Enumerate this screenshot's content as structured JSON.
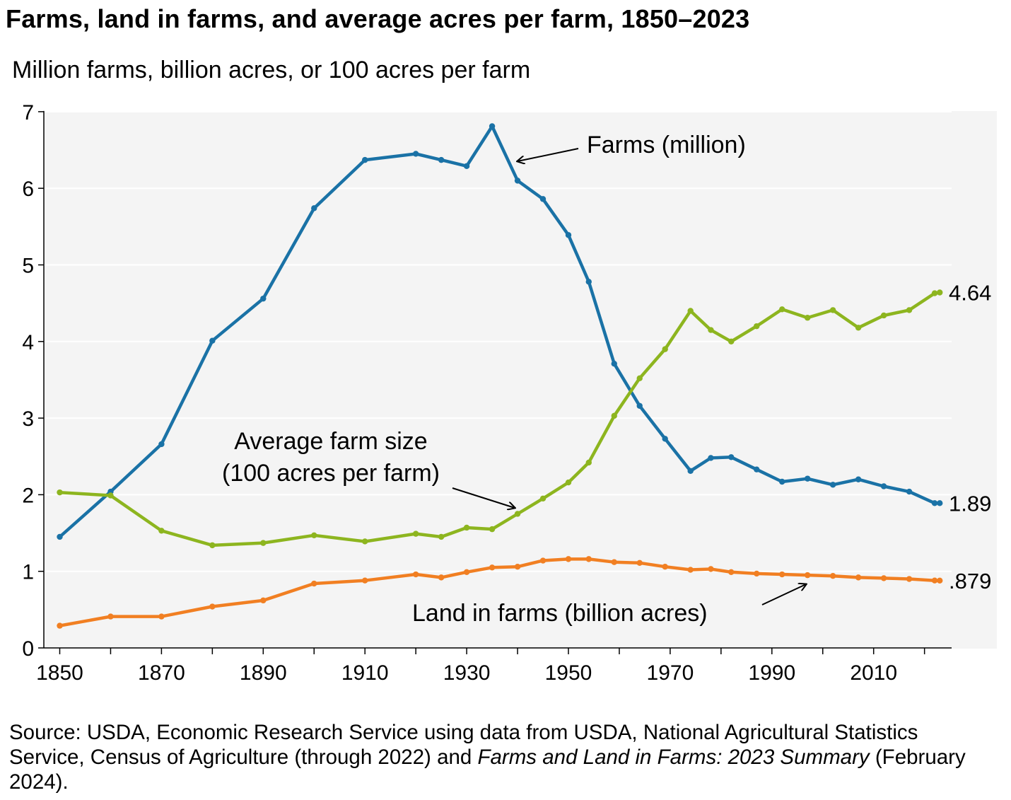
{
  "title": "Farms, land in farms, and average acres per farm, 1850–2023",
  "subtitle": "Million farms, billion acres, or 100 acres per farm",
  "source": {
    "prefix": "Source: USDA, Economic Research Service using data from USDA, National Agricultural Statistics Service, Census of Agriculture (through 2022) and ",
    "italic1": "Farms and Land in Farms: 2023 Summary",
    "suffix": " (February 2024)."
  },
  "colors": {
    "farms": "#1a72a6",
    "size": "#8db51f",
    "land": "#f17f22",
    "plot_bg": "#f4f4f4",
    "grid": "#ffffff"
  },
  "chart_data": {
    "type": "line",
    "title": "Farms, land in farms, and average acres per farm, 1850–2023",
    "ylabel": "Million farms, billion acres, or 100 acres per farm",
    "xlabel": "",
    "xlim": [
      1847,
      2026
    ],
    "ylim": [
      0,
      7
    ],
    "x_ticks": [
      "1850",
      "1870",
      "1890",
      "1910",
      "1930",
      "1950",
      "1970",
      "1990",
      "2010"
    ],
    "y_ticks": [
      "0",
      "1",
      "2",
      "3",
      "4",
      "5",
      "6",
      "7"
    ],
    "grid": true,
    "series": [
      {
        "key": "farms",
        "name": "Farms (million)",
        "end_label": "1.89",
        "x": [
          1850,
          1860,
          1870,
          1880,
          1890,
          1900,
          1910,
          1920,
          1925,
          1930,
          1935,
          1940,
          1945,
          1950,
          1954,
          1959,
          1964,
          1969,
          1974,
          1978,
          1982,
          1987,
          1992,
          1997,
          2002,
          2007,
          2012,
          2017,
          2022,
          2023
        ],
        "values": [
          1.45,
          2.04,
          2.66,
          4.01,
          4.56,
          5.74,
          6.37,
          6.45,
          6.37,
          6.29,
          6.81,
          6.1,
          5.86,
          5.39,
          4.78,
          3.71,
          3.16,
          2.73,
          2.31,
          2.48,
          2.49,
          2.33,
          2.17,
          2.21,
          2.13,
          2.2,
          2.11,
          2.04,
          1.89,
          1.89
        ]
      },
      {
        "key": "size",
        "name": "Average farm size\n(100 acres per farm)",
        "end_label": "4.64",
        "x": [
          1850,
          1860,
          1870,
          1880,
          1890,
          1900,
          1910,
          1920,
          1925,
          1930,
          1935,
          1940,
          1945,
          1950,
          1954,
          1959,
          1964,
          1969,
          1974,
          1978,
          1982,
          1987,
          1992,
          1997,
          2002,
          2007,
          2012,
          2017,
          2022,
          2023
        ],
        "values": [
          2.03,
          1.99,
          1.53,
          1.34,
          1.37,
          1.47,
          1.39,
          1.49,
          1.45,
          1.57,
          1.55,
          1.75,
          1.95,
          2.16,
          2.42,
          3.03,
          3.52,
          3.9,
          4.4,
          4.15,
          4.0,
          4.2,
          4.42,
          4.31,
          4.41,
          4.18,
          4.34,
          4.41,
          4.63,
          4.64
        ]
      },
      {
        "key": "land",
        "name": "Land in farms (billion acres)",
        "end_label": ".879",
        "x": [
          1850,
          1860,
          1870,
          1880,
          1890,
          1900,
          1910,
          1920,
          1925,
          1930,
          1935,
          1940,
          1945,
          1950,
          1954,
          1959,
          1964,
          1969,
          1974,
          1978,
          1982,
          1987,
          1992,
          1997,
          2002,
          2007,
          2012,
          2017,
          2022,
          2023
        ],
        "values": [
          0.29,
          0.41,
          0.41,
          0.54,
          0.62,
          0.84,
          0.88,
          0.96,
          0.92,
          0.99,
          1.05,
          1.06,
          1.14,
          1.16,
          1.16,
          1.12,
          1.11,
          1.06,
          1.02,
          1.03,
          0.99,
          0.97,
          0.96,
          0.95,
          0.94,
          0.92,
          0.91,
          0.9,
          0.88,
          0.879
        ]
      }
    ],
    "annotations": [
      {
        "text": "Farms (million)"
      },
      {
        "text": "Average farm size"
      },
      {
        "text": "(100 acres per farm)"
      },
      {
        "text": "Land in farms (billion acres)"
      }
    ]
  }
}
